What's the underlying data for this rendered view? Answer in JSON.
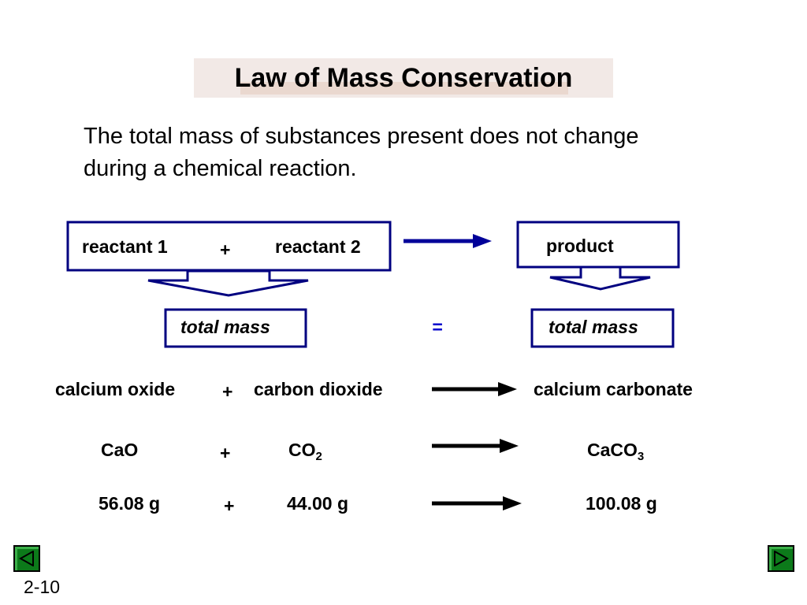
{
  "slide": {
    "title": "Law of Mass Conservation",
    "statement_line1": "The total mass of substances present does not change",
    "statement_line2": "during a chemical reaction.",
    "page_number": "2-10"
  },
  "diagram": {
    "reactant1": "reactant 1",
    "plus": "+",
    "reactant2": "reactant 2",
    "product": "product",
    "total_mass_left": "total mass",
    "equals": "=",
    "total_mass_right": "total mass"
  },
  "equation_names": {
    "reactant1": "calcium oxide",
    "plus": "+",
    "reactant2": "carbon dioxide",
    "product": "calcium carbonate"
  },
  "equation_formulas": {
    "reactant1": "CaO",
    "plus": "+",
    "reactant2_base": "CO",
    "reactant2_sub": "2",
    "product_base": "CaCO",
    "product_sub": "3"
  },
  "equation_masses": {
    "reactant1": "56.08 g",
    "plus": "+",
    "reactant2": "44.00 g",
    "product": "100.08 g"
  },
  "colors": {
    "box_border": "#000080",
    "arrow": "#000099",
    "equals": "#0000cc",
    "nav_button": "#0c7a1a"
  },
  "nav": {
    "prev_icon": "triangle-left-icon",
    "next_icon": "triangle-right-icon"
  }
}
